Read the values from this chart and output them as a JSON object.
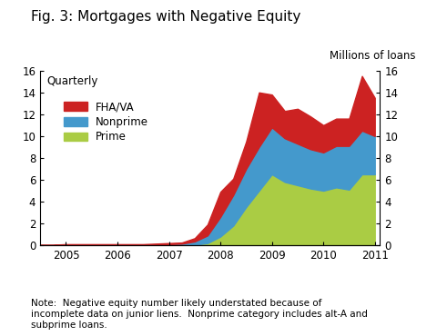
{
  "title": "Fig. 3: Mortgages with Negative Equity",
  "subtitle_right": "Millions of loans",
  "subtitle_left": "Quarterly",
  "note": "Note:  Negative equity number likely understated because of\nincomplete data on junior liens.  Nonprime category includes alt-A and\nsubprime loans.",
  "ylim": [
    0,
    16
  ],
  "yticks": [
    0,
    2,
    4,
    6,
    8,
    10,
    12,
    14,
    16
  ],
  "colors": {
    "prime": "#aacc44",
    "nonprime": "#4499cc",
    "fhava": "#cc2222"
  },
  "legend_labels": [
    "FHA/VA",
    "Nonprime",
    "Prime"
  ],
  "x_numeric": [
    2004.5,
    2004.75,
    2005.0,
    2005.25,
    2005.5,
    2005.75,
    2006.0,
    2006.25,
    2006.5,
    2006.75,
    2007.0,
    2007.25,
    2007.5,
    2007.75,
    2008.0,
    2008.25,
    2008.5,
    2008.75,
    2009.0,
    2009.25,
    2009.5,
    2009.75,
    2010.0,
    2010.25,
    2010.5,
    2010.75,
    2011.0
  ],
  "prime": [
    0.0,
    0.0,
    0.0,
    0.0,
    0.0,
    0.0,
    0.0,
    0.0,
    0.0,
    0.0,
    0.0,
    0.0,
    0.05,
    0.2,
    0.8,
    1.8,
    3.5,
    5.0,
    6.5,
    5.8,
    5.5,
    5.2,
    5.0,
    5.3,
    5.1,
    6.5,
    6.5
  ],
  "nonprime": [
    0.0,
    0.0,
    0.05,
    0.05,
    0.05,
    0.05,
    0.05,
    0.05,
    0.05,
    0.05,
    0.1,
    0.15,
    0.3,
    0.7,
    1.8,
    2.8,
    3.5,
    4.0,
    4.3,
    4.0,
    3.8,
    3.6,
    3.5,
    3.8,
    4.0,
    4.0,
    3.5
  ],
  "fhava": [
    0.05,
    0.05,
    0.05,
    0.05,
    0.05,
    0.05,
    0.05,
    0.05,
    0.05,
    0.1,
    0.1,
    0.1,
    0.3,
    1.0,
    2.3,
    1.5,
    2.5,
    5.0,
    3.0,
    2.5,
    3.2,
    3.0,
    2.5,
    2.5,
    2.5,
    5.0,
    3.5
  ],
  "xlim_left": 2004.5,
  "xlim_right": 2011.1,
  "xtick_positions": [
    2005,
    2006,
    2007,
    2008,
    2009,
    2010,
    2011
  ],
  "xtick_labels": [
    "2005",
    "2006",
    "2007",
    "2008",
    "2009",
    "2010",
    "2011"
  ]
}
